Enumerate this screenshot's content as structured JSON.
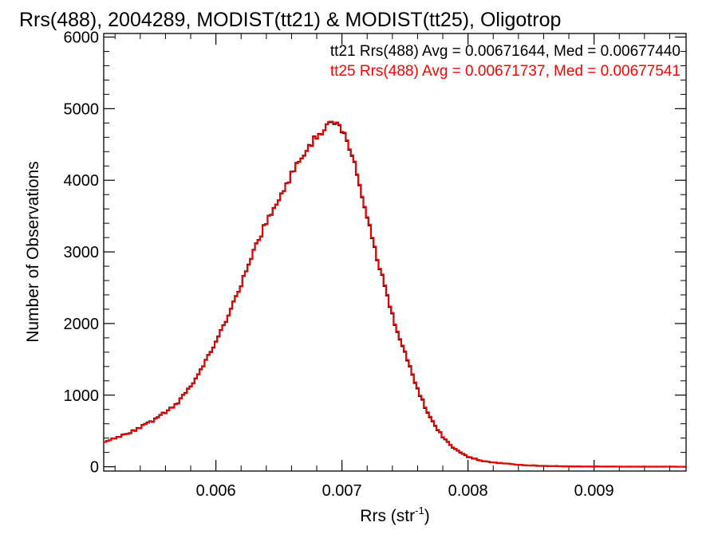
{
  "chart_data": {
    "type": "line",
    "style": "step-histogram",
    "title": "Rrs(488), 2004289, MODIST(tt21) & MODIST(tt25), Oligotrop",
    "xlabel": "Rrs (str",
    "xlabel_superscript": "-1",
    "xlabel_suffix": ")",
    "ylabel": "Number of Observations",
    "xlim": [
      0.00511,
      0.00973
    ],
    "ylim": [
      -60,
      6050
    ],
    "xticks": [
      0.006,
      0.007,
      0.008,
      0.009
    ],
    "xtick_labels": [
      "0.006",
      "0.007",
      "0.008",
      "0.009"
    ],
    "yticks": [
      0,
      1000,
      2000,
      3000,
      4000,
      5000,
      6000
    ],
    "ytick_labels": [
      "0",
      "1000",
      "2000",
      "3000",
      "4000",
      "5000",
      "6000"
    ],
    "grid": false,
    "legend_position": "top-right",
    "legend": [
      "tt21 Rrs(488) Avg = 0.00671644, Med = 0.00677440",
      "tt25 Rrs(488) Avg = 0.00671737, Med = 0.00677541"
    ],
    "x": [
      0.00511,
      0.0053,
      0.0055,
      0.0057,
      0.0058,
      0.0059,
      0.006,
      0.0061,
      0.0062,
      0.0063,
      0.0064,
      0.0065,
      0.0066,
      0.0067,
      0.0068,
      0.00685,
      0.0069,
      0.00695,
      0.007,
      0.00705,
      0.0071,
      0.0072,
      0.0073,
      0.0074,
      0.0075,
      0.0076,
      0.0077,
      0.0078,
      0.0079,
      0.008,
      0.0081,
      0.0082,
      0.0083,
      0.0084,
      0.0085,
      0.0086,
      0.0087,
      0.0088,
      0.009,
      0.0092,
      0.0094,
      0.0096,
      0.00973
    ],
    "series": [
      {
        "name": "tt21",
        "color": "#000000",
        "values": [
          350,
          460,
          640,
          890,
          1130,
          1400,
          1750,
          2120,
          2550,
          3000,
          3420,
          3730,
          4080,
          4380,
          4620,
          4690,
          4810,
          4790,
          4700,
          4500,
          4230,
          3480,
          2780,
          2110,
          1580,
          1080,
          680,
          420,
          240,
          140,
          85,
          60,
          45,
          28,
          18,
          12,
          8,
          5,
          3,
          2,
          1,
          1,
          0
        ]
      },
      {
        "name": "tt25",
        "color": "#ff0000",
        "values": [
          350,
          455,
          635,
          885,
          1125,
          1395,
          1745,
          2115,
          2545,
          2995,
          3415,
          3725,
          4075,
          4375,
          4615,
          4685,
          4820,
          4800,
          4710,
          4510,
          4240,
          3490,
          2790,
          2120,
          1590,
          1090,
          690,
          425,
          245,
          145,
          88,
          62,
          46,
          29,
          19,
          13,
          8,
          5,
          3,
          2,
          1,
          1,
          0
        ]
      }
    ]
  }
}
